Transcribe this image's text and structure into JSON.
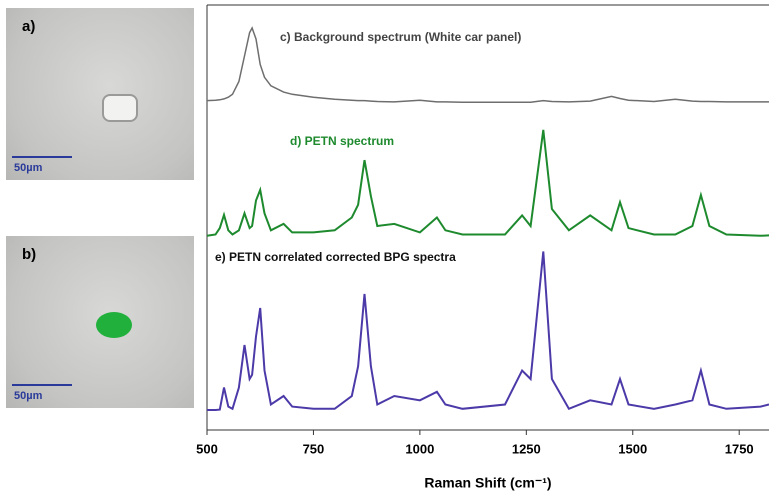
{
  "panels": [
    {
      "label": "a)",
      "scale_bar": "50µm"
    },
    {
      "label": "b)",
      "scale_bar": "50µm"
    }
  ],
  "chart_data": {
    "type": "line",
    "x_label": "Raman Shift (cm⁻¹)",
    "xlim": [
      500,
      1820
    ],
    "xticks": [
      500,
      750,
      1000,
      1250,
      1500,
      1750
    ],
    "ylim": [
      0,
      100
    ],
    "x": [
      500,
      520,
      530,
      540,
      550,
      560,
      575,
      588,
      600,
      606,
      615,
      625,
      635,
      650,
      680,
      700,
      750,
      800,
      840,
      855,
      870,
      885,
      900,
      940,
      1000,
      1040,
      1060,
      1100,
      1200,
      1240,
      1260,
      1290,
      1310,
      1350,
      1400,
      1450,
      1470,
      1490,
      1550,
      1600,
      1640,
      1660,
      1680,
      1720,
      1800,
      1820
    ],
    "series": [
      {
        "name": "c) Background spectrum (White car panel)",
        "color": "#6e6e6e",
        "values": [
          77.5,
          77.6,
          77.7,
          77.9,
          78.3,
          79,
          82,
          88,
          93.5,
          94.6,
          92,
          86,
          83,
          81,
          79.5,
          79,
          78.3,
          77.8,
          77.6,
          77.5,
          77.5,
          77.4,
          77.3,
          77.2,
          77.6,
          77.2,
          77.2,
          77.1,
          77.1,
          77.1,
          77.1,
          77.5,
          77.3,
          77.2,
          77.4,
          78.5,
          78,
          77.6,
          77.3,
          77.8,
          77.4,
          77.3,
          77.3,
          77.2,
          77.2,
          77.2
        ]
      },
      {
        "name": "d) PETN spectrum",
        "color": "#1e8a2e",
        "values": [
          45.7,
          46,
          47.5,
          50.6,
          47,
          46,
          47,
          51,
          47.5,
          48,
          54,
          56.5,
          51,
          47,
          48.5,
          46.5,
          46.5,
          47,
          50,
          53,
          63.5,
          55,
          48,
          48.5,
          46.5,
          50,
          47,
          46,
          46,
          50.5,
          48,
          70.6,
          52,
          47,
          50.5,
          47,
          53.6,
          47.5,
          46,
          46,
          48,
          55.3,
          48,
          46,
          45.7,
          45.8
        ]
      },
      {
        "name": "e) PETN correlated corrected BPG spectra",
        "color": "#4b3aa8",
        "values": [
          4.7,
          4.7,
          4.8,
          10,
          5.5,
          5,
          10,
          20,
          12,
          13,
          22,
          28.7,
          14,
          6,
          8,
          5.5,
          5,
          5,
          8,
          15,
          32,
          15,
          6,
          8,
          7,
          9,
          6,
          5,
          6,
          14,
          12,
          42,
          12,
          5,
          7,
          6,
          12,
          6,
          5,
          6,
          7,
          14,
          6,
          5,
          5.5,
          6
        ]
      }
    ]
  }
}
